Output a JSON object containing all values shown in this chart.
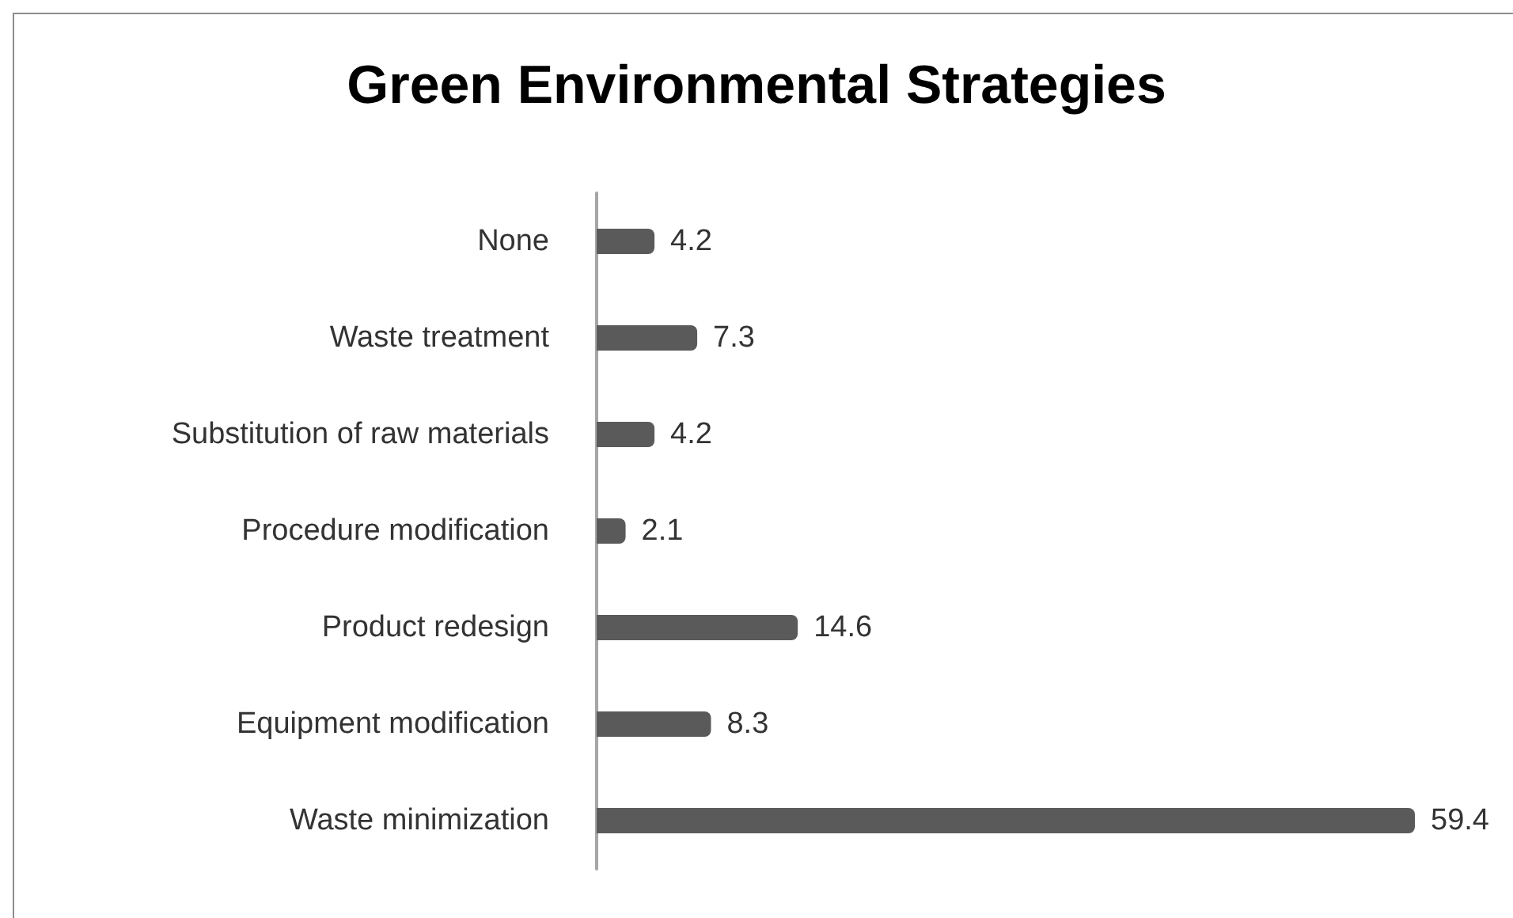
{
  "chart_data": {
    "type": "bar",
    "orientation": "horizontal",
    "title": "Green Environmental Strategies",
    "categories": [
      "None",
      "Waste treatment",
      "Substitution of raw materials",
      "Procedure modification",
      "Product redesign",
      "Equipment modification",
      "Waste minimization"
    ],
    "values": [
      4.2,
      7.3,
      4.2,
      2.1,
      14.6,
      8.3,
      59.4
    ],
    "color": "#5a5a5a",
    "data_labels": true
  }
}
